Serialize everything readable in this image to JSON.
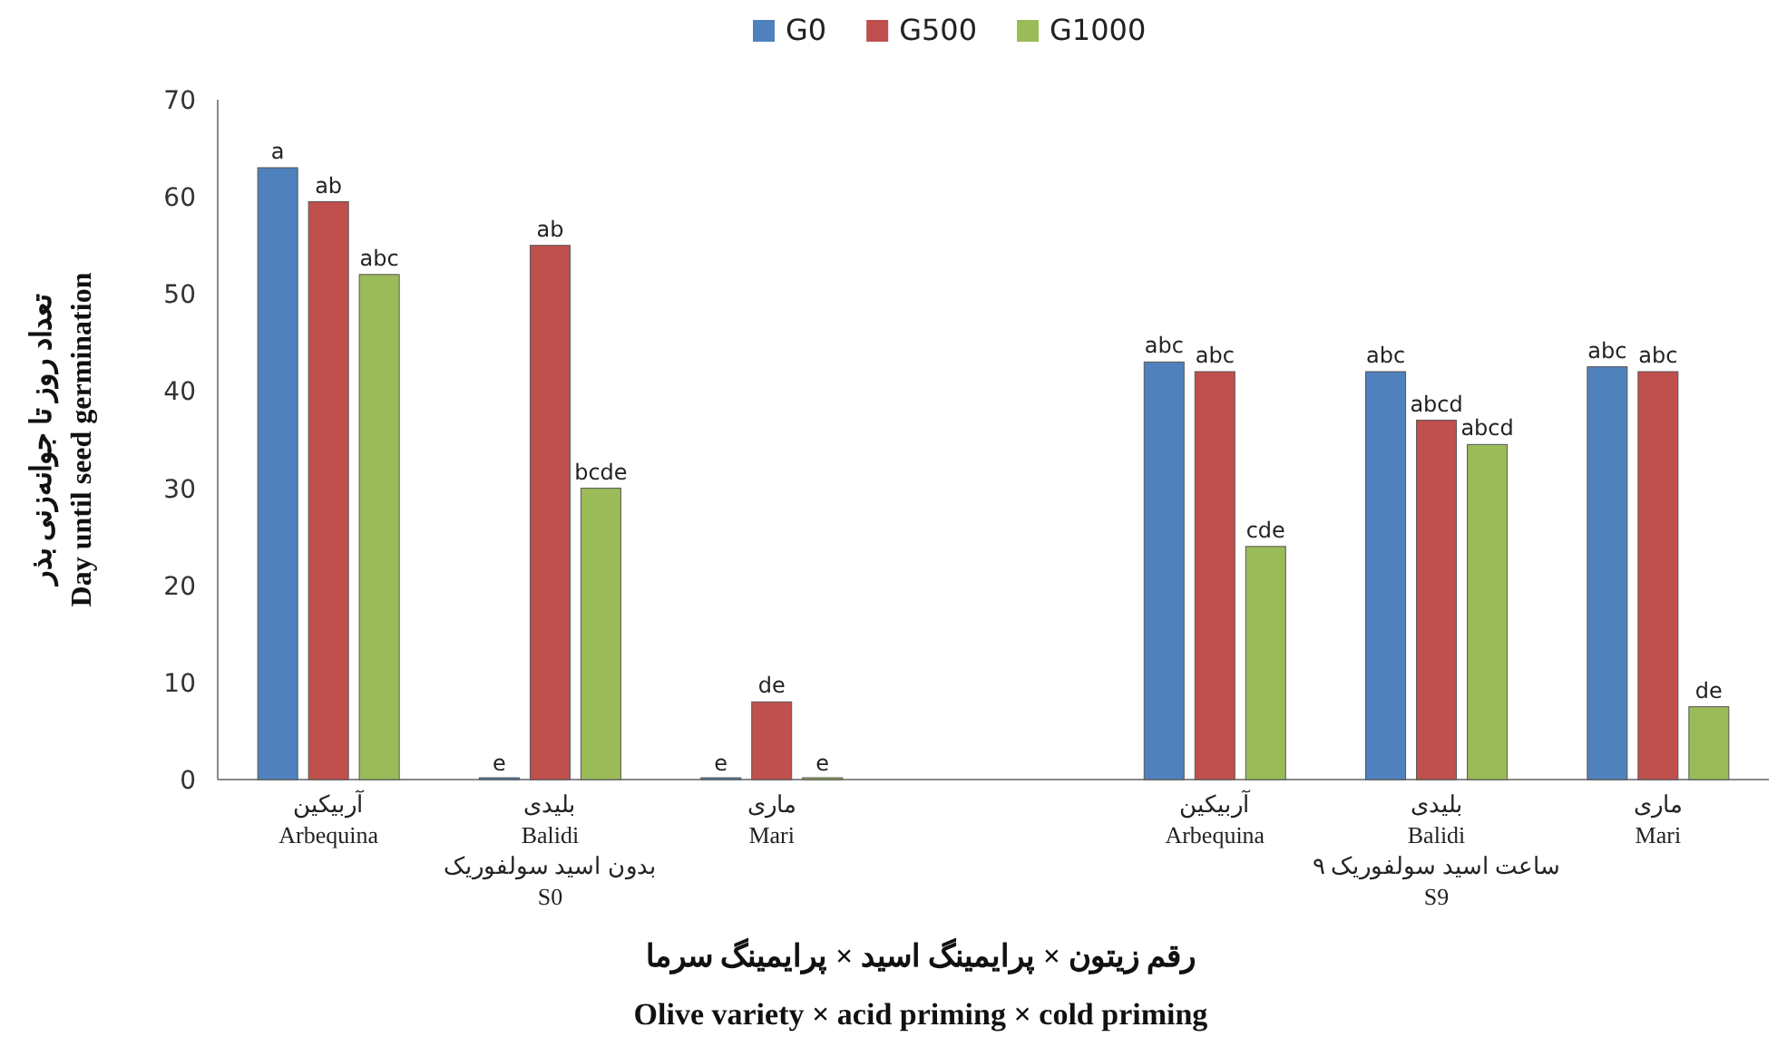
{
  "chart_data": {
    "type": "bar",
    "categories": [
      "آربیکین\nArbequina",
      "بلیدی\nBalidi\nبدون اسید سولفوریک\nS0",
      "ماری\nMari",
      null,
      "آربیکین\nArbequina",
      "بلیدی\nBalidi\n۹ ساعت اسید سولفوریک\nS9",
      "ماری\nMari"
    ],
    "series": [
      {
        "name": "G0",
        "color": "#4f81bd",
        "values": [
          63,
          0,
          0,
          null,
          43,
          42,
          42.5
        ],
        "value_labels": [
          "a",
          "e",
          "e",
          null,
          "abc",
          "abc",
          "abc"
        ]
      },
      {
        "name": "G500",
        "color": "#c0504d",
        "values": [
          59.5,
          55,
          8,
          null,
          42,
          37,
          42
        ],
        "value_labels": [
          "ab",
          "ab",
          "de",
          null,
          "abc",
          "abcd",
          "abc"
        ]
      },
      {
        "name": "G1000",
        "color": "#9bbb59",
        "values": [
          52,
          30,
          0,
          null,
          24,
          34.5,
          7.5
        ],
        "value_labels": [
          "abc",
          "bcde",
          "e",
          null,
          "cde",
          "abcd",
          "de"
        ]
      }
    ],
    "ylabel": "تعداد روز تا جوانه‌زنی بذر\nDay until seed germination",
    "xlabel": "رقم  زیتون × پرایمینگ اسید × پرایمینگ سرما\nOlive variety × acid priming × cold priming",
    "ylim": [
      0,
      70
    ],
    "yticks": [
      0,
      10,
      20,
      30,
      40,
      50,
      60,
      70
    ],
    "grid": false,
    "legend": "top"
  }
}
